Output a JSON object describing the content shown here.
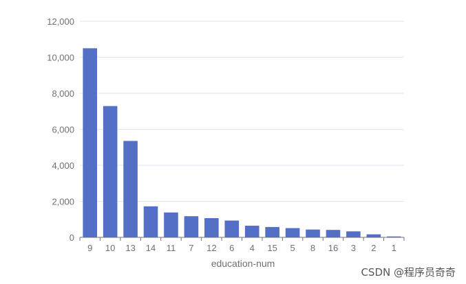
{
  "chart_data": {
    "type": "bar",
    "title": "",
    "xlabel": "education-num",
    "ylabel": "",
    "categories": [
      "9",
      "10",
      "13",
      "14",
      "11",
      "7",
      "12",
      "6",
      "4",
      "15",
      "5",
      "8",
      "16",
      "3",
      "2",
      "1"
    ],
    "values": [
      10501,
      7291,
      5355,
      1723,
      1382,
      1175,
      1067,
      933,
      646,
      576,
      514,
      433,
      413,
      333,
      168,
      51
    ],
    "ylim": [
      0,
      12000
    ],
    "yticks": [
      "0",
      "2,000",
      "4,000",
      "6,000",
      "8,000",
      "10,000",
      "12,000"
    ],
    "ytick_values": [
      0,
      2000,
      4000,
      6000,
      8000,
      10000,
      12000
    ],
    "grid": true,
    "bar_color": "#5470c6",
    "grid_color": "#e0e6f1",
    "axis_color": "#6e7079"
  },
  "watermark": "CSDN @程序员奇奇"
}
